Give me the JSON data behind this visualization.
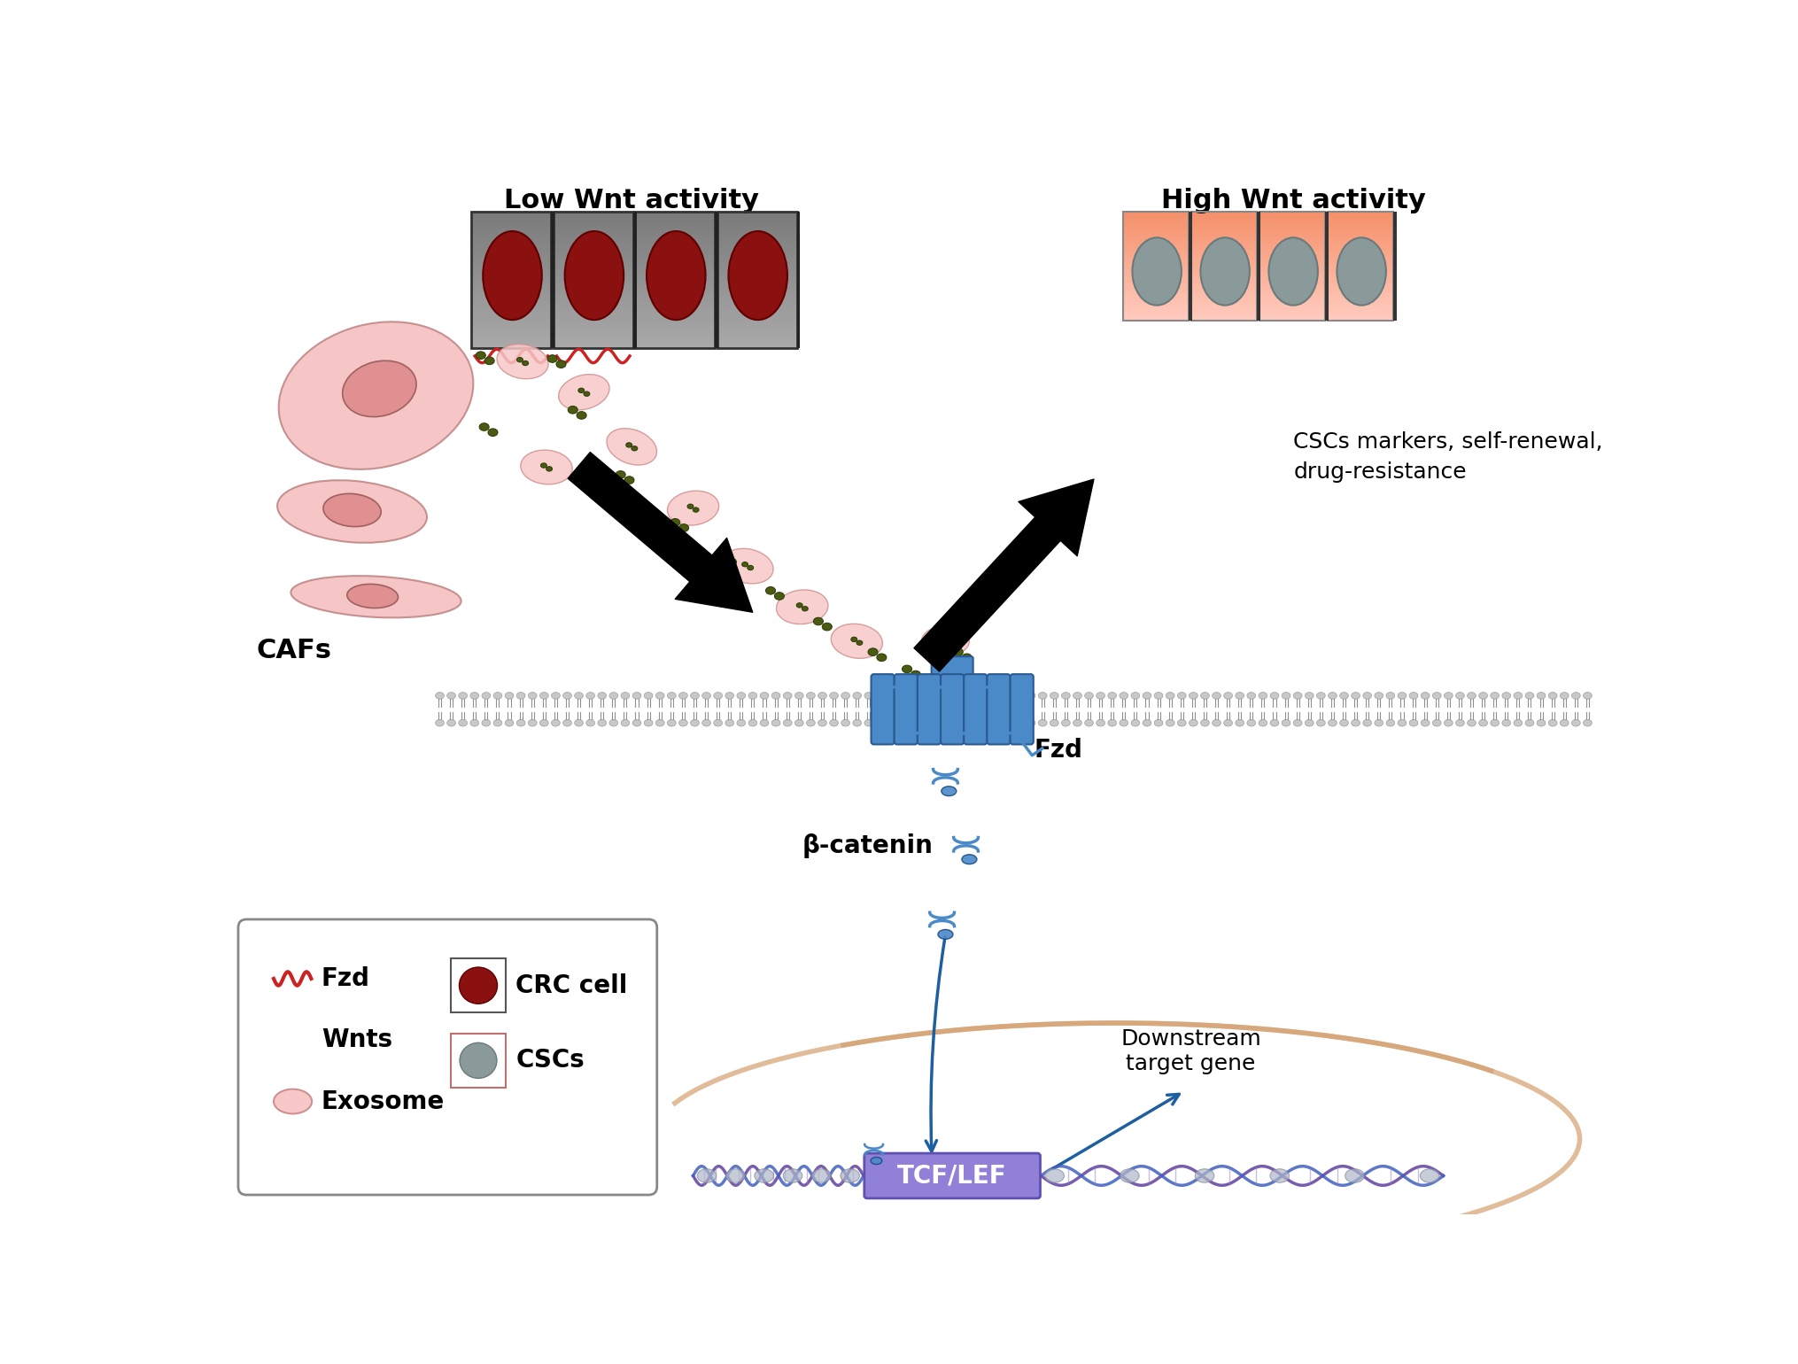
{
  "background_color": "#ffffff",
  "fig_width": 20.31,
  "fig_height": 15.4,
  "low_wnt_text": "Low Wnt activity",
  "high_wnt_text": "High Wnt activity",
  "cafs_text": "CAFs",
  "fzd_text": "Fzd",
  "beta_catenin_text": "β-catenin",
  "cscs_text": "CSCs markers, self-renewal,\ndrug-resistance",
  "downstream_text": "Downstream\ntarget gene",
  "tcf_lef_text": "TCF/LEF",
  "cell_gray_dark": "#7a7a7a",
  "cell_gray_light": "#aaaaaa",
  "cell_dark_red": "#8B1010",
  "cell_pink_dark": "#F08080",
  "cell_pink_light": "#FFB0A0",
  "cell_pink_gradient_top": "#F5906A",
  "cell_pink_gradient_bot": "#FFCCC0",
  "cell_gray_nucleus": "#8A9A9A",
  "wnt_dot_color": "#4A5A10",
  "exosome_pink": "#F5C0C0",
  "fzd_blue": "#4A8AC8",
  "fzd_blue_dark": "#2A5A90",
  "beta_catenin_blue": "#4A8AC8",
  "tcf_lef_purple": "#9080D8",
  "nucleus_tan": "#D4A070",
  "membrane_gray": "#B0B0B0",
  "arrow_black": "#111111",
  "arrow_blue": "#1E5FA0",
  "dna_purple": "#6040A0",
  "dna_blue": "#4060C0",
  "red_wavy": "#CC2222"
}
